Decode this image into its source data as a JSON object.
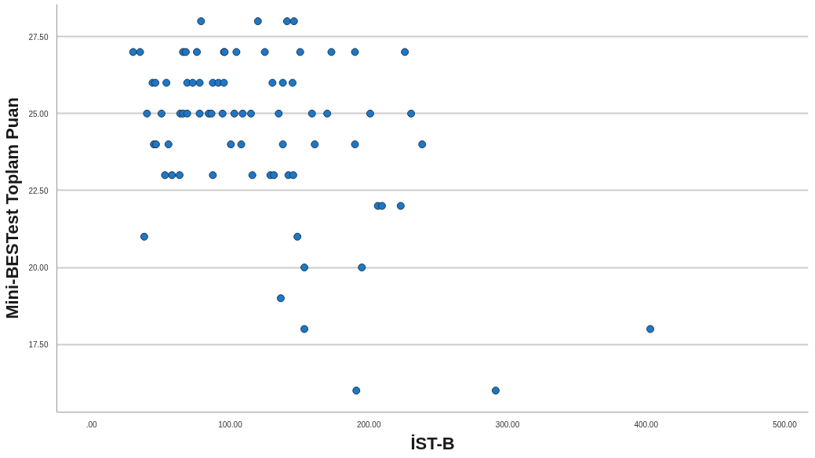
{
  "chart_data": {
    "type": "scatter",
    "xlabel": "İST-B",
    "ylabel": "Mini-BESTest Toplam Puan",
    "xlim": [
      -25,
      517
    ],
    "ylim": [
      15.3,
      28.55
    ],
    "xticks": [
      {
        "value": 0,
        "label": ".00"
      },
      {
        "value": 100,
        "label": "100.00"
      },
      {
        "value": 200,
        "label": "200.00"
      },
      {
        "value": 300,
        "label": "300.00"
      },
      {
        "value": 400,
        "label": "400.00"
      },
      {
        "value": 500,
        "label": "500.00"
      }
    ],
    "yticks": [
      {
        "value": 17.5,
        "label": "17.50"
      },
      {
        "value": 20,
        "label": "20.00"
      },
      {
        "value": 22.5,
        "label": "22.50"
      },
      {
        "value": 25,
        "label": "25.00"
      },
      {
        "value": 27.5,
        "label": "27.50"
      }
    ],
    "grid": "y",
    "marker": "circle",
    "series": [
      {
        "color": "#1f77c4",
        "x": [
          79,
          120,
          141,
          146,
          30,
          35,
          66,
          68,
          76,
          95.5,
          96,
          104.5,
          125,
          150.5,
          173,
          190,
          226,
          44,
          46,
          54,
          69,
          73,
          78,
          87.5,
          91.5,
          95.5,
          130.5,
          138,
          145,
          40,
          50.5,
          64,
          66,
          69,
          78,
          84.5,
          86.5,
          94.5,
          103,
          109,
          115,
          135,
          159,
          170,
          201,
          230.5,
          45,
          46.5,
          55.5,
          100.5,
          108,
          138,
          161,
          190,
          238.5,
          53,
          58,
          63.5,
          87.5,
          116,
          129,
          131.5,
          142,
          145.5,
          206.5,
          209.5,
          223,
          38,
          148.5,
          153.5,
          195,
          136.5,
          153.5,
          403,
          191,
          291.5
        ],
        "values": [
          28,
          28,
          28,
          28,
          27,
          27,
          27,
          27,
          27,
          27,
          27,
          27,
          27,
          27,
          27,
          27,
          27,
          26,
          26,
          26,
          26,
          26,
          26,
          26,
          26,
          26,
          26,
          26,
          26,
          25,
          25,
          25,
          25,
          25,
          25,
          25,
          25,
          25,
          25,
          25,
          25,
          25,
          25,
          25,
          25,
          25,
          24,
          24,
          24,
          24,
          24,
          24,
          24,
          24,
          24,
          23,
          23,
          23,
          23,
          23,
          23,
          23,
          23,
          23,
          22,
          22,
          22,
          21,
          21,
          20,
          20,
          19,
          18,
          18,
          16,
          16
        ]
      }
    ]
  }
}
